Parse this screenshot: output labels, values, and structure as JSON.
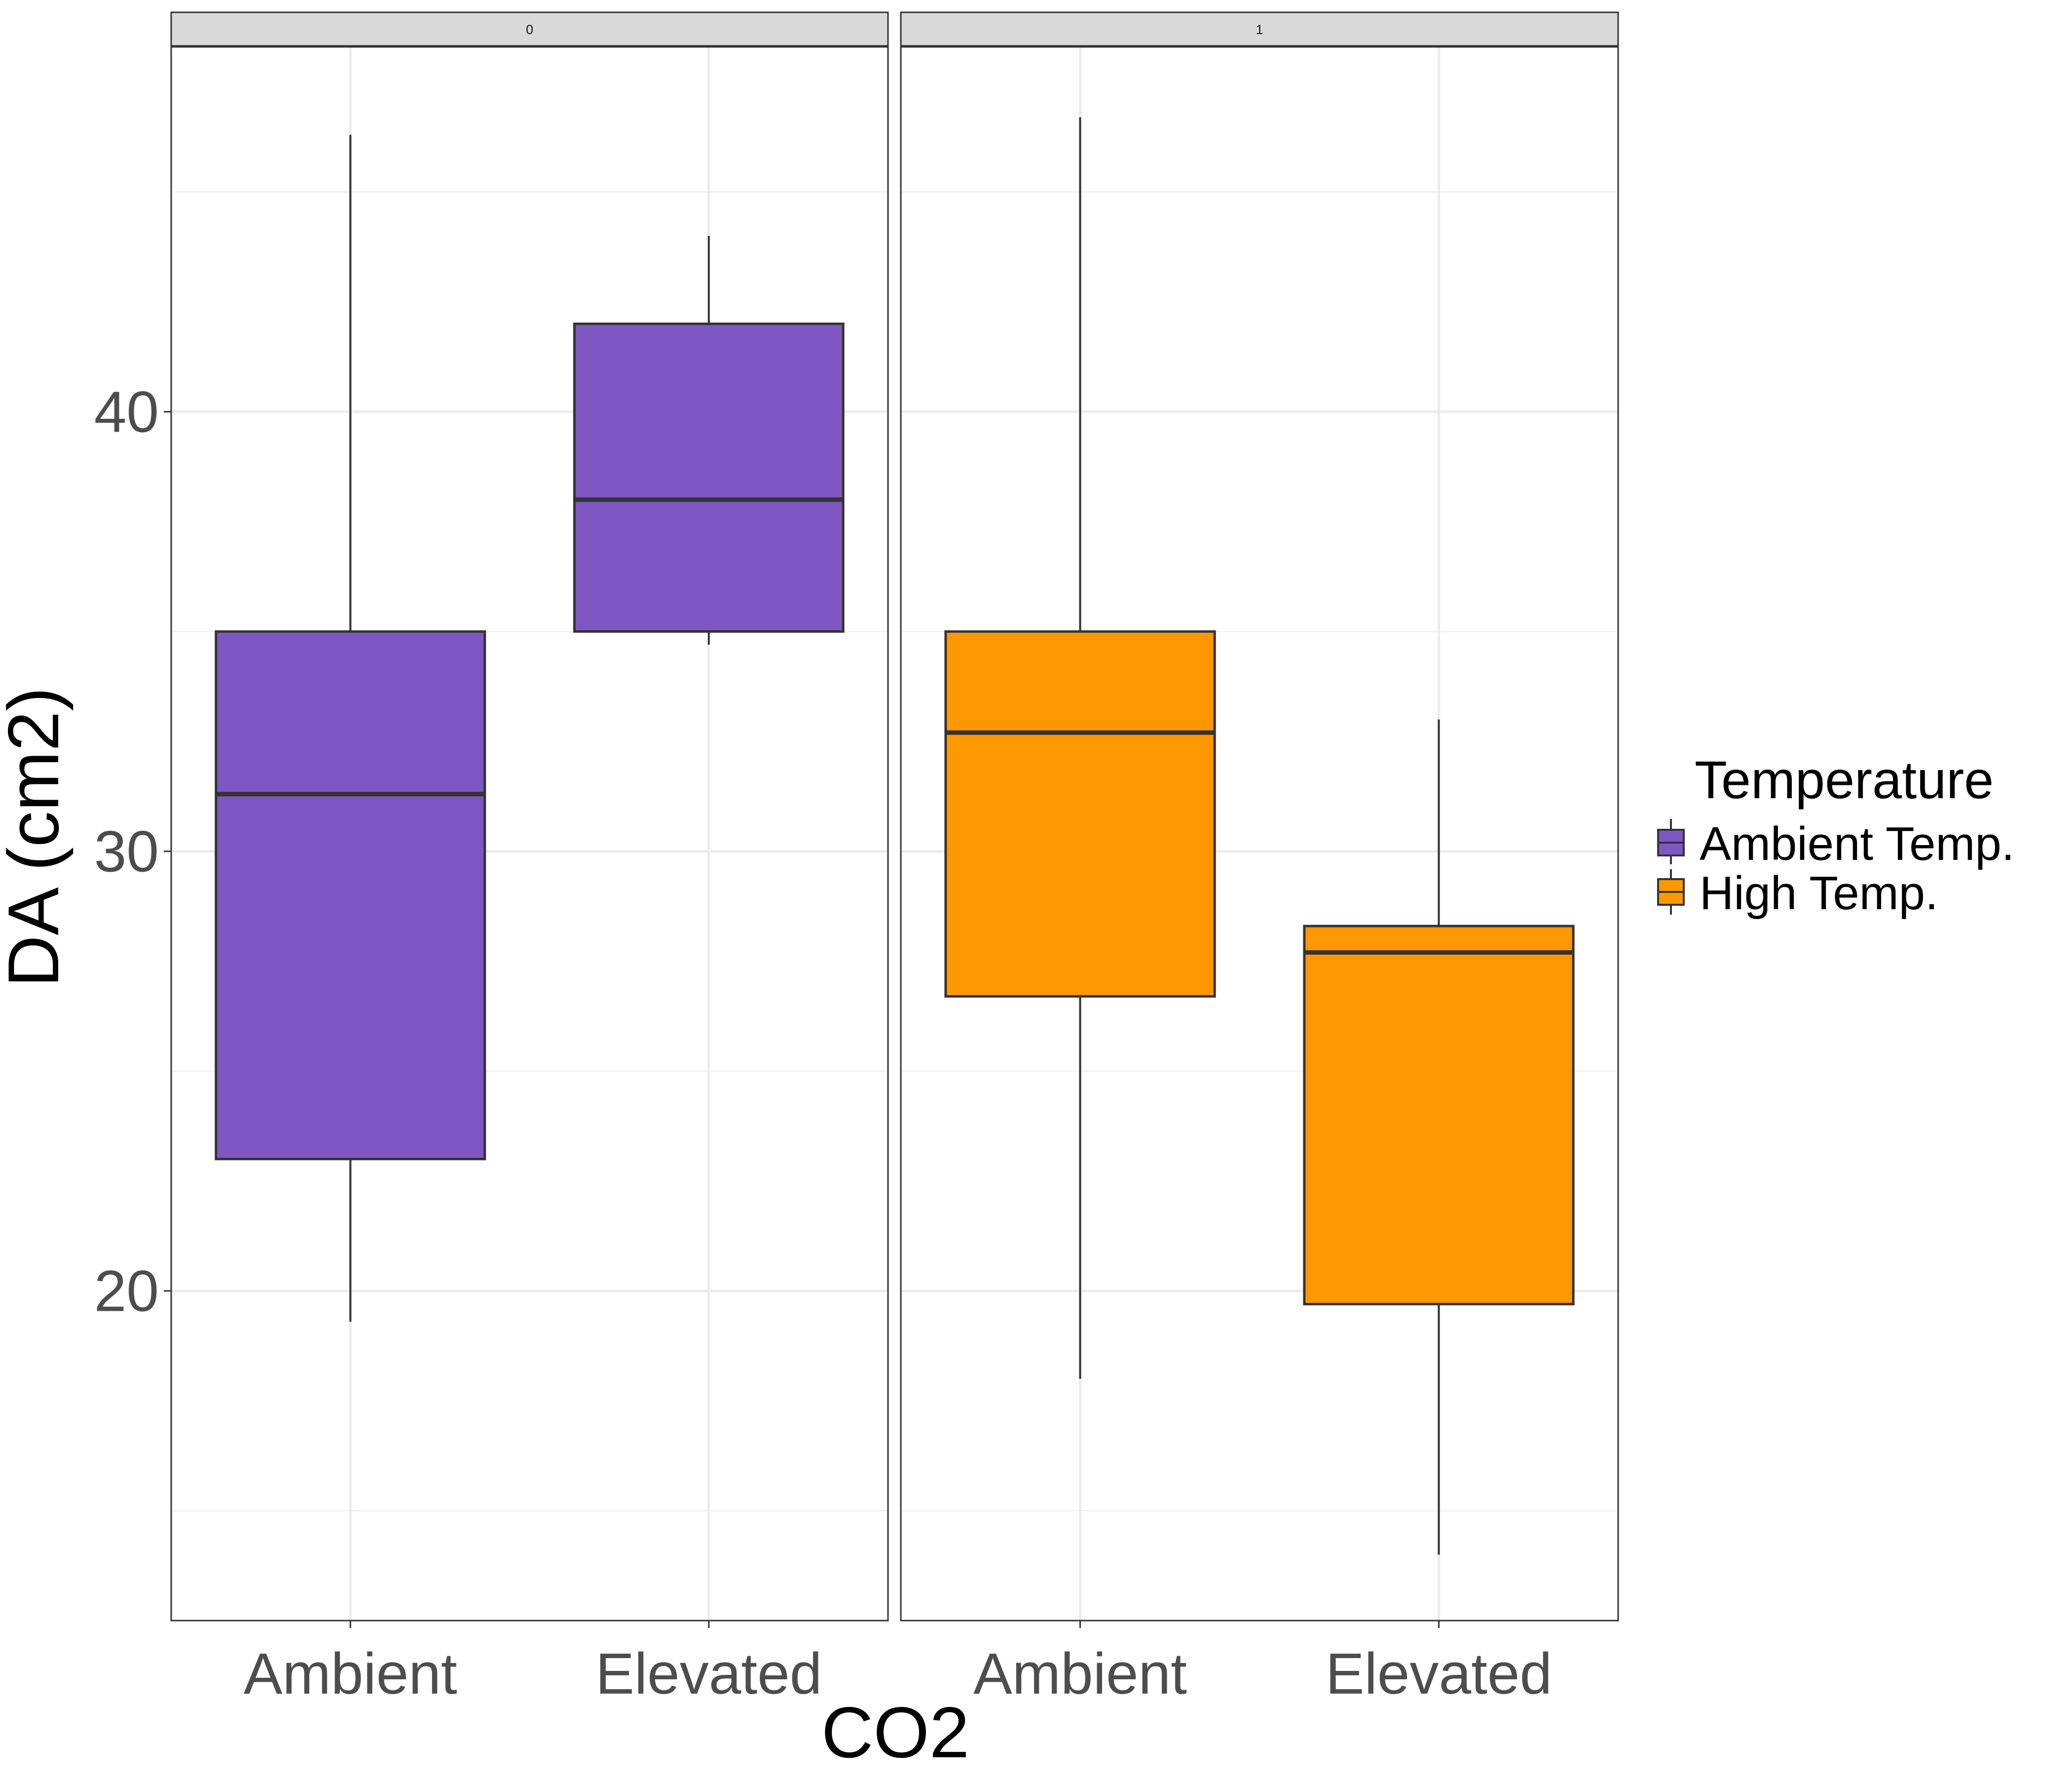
{
  "chart_data": {
    "type": "boxplot",
    "xlabel": "CO2",
    "ylabel": "DA (cm2)",
    "ylim": [
      12.5,
      48.3
    ],
    "y_ticks": [
      20,
      30,
      40
    ],
    "categories": [
      "Ambient",
      "Elevated"
    ],
    "facets": [
      "0",
      "1"
    ],
    "legend": {
      "title": "Temperature",
      "placement": "right",
      "items": [
        {
          "label": "Ambient Temp.",
          "color": "#7e57c2"
        },
        {
          "label": "High Temp.",
          "color": "#ff9800"
        }
      ]
    },
    "grid": true,
    "panels": [
      {
        "facet": "0",
        "series": "Ambient Temp.",
        "color": "#7e57c2",
        "boxes": [
          {
            "category": "Ambient",
            "min": 19.3,
            "q1": 23.0,
            "median": 31.3,
            "q3": 35.0,
            "max": 46.3
          },
          {
            "category": "Elevated",
            "min": 34.7,
            "q1": 35.0,
            "median": 38.0,
            "q3": 42.0,
            "max": 44.0
          }
        ]
      },
      {
        "facet": "1",
        "series": "High Temp.",
        "color": "#ff9800",
        "boxes": [
          {
            "category": "Ambient",
            "min": 18.0,
            "q1": 26.7,
            "median": 32.7,
            "q3": 35.0,
            "max": 46.7
          },
          {
            "category": "Elevated",
            "min": 14.0,
            "q1": 19.7,
            "median": 27.7,
            "q3": 28.3,
            "max": 33.0
          }
        ]
      }
    ]
  }
}
